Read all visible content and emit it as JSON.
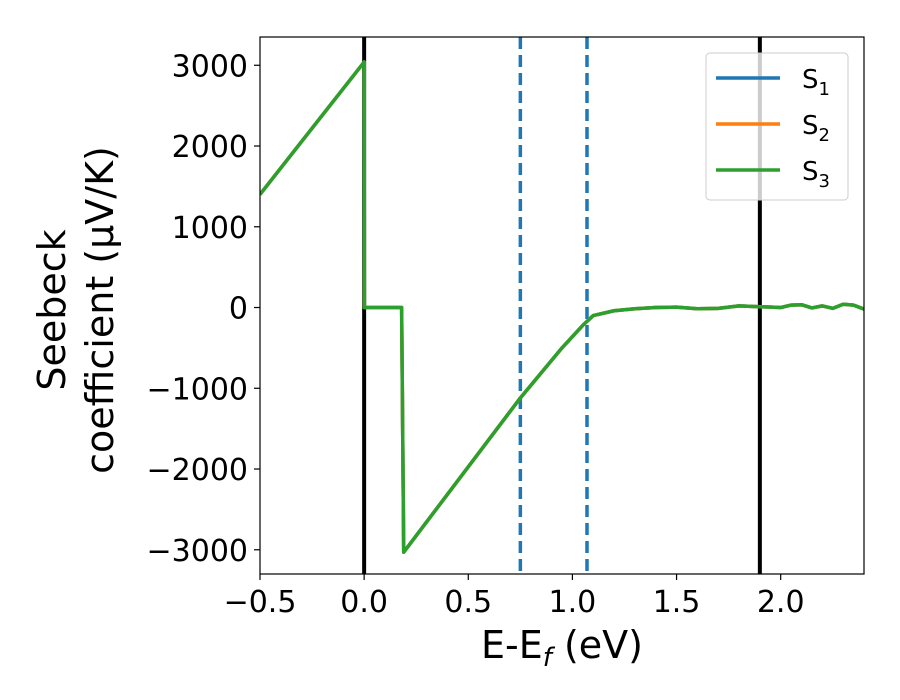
{
  "chart_data": {
    "type": "line",
    "xlabel": "E-E",
    "xlabel_sub": "f",
    "xlabel_unit": " (eV)",
    "ylabel_line1": "Seebeck",
    "ylabel_line2": "coefficient  (μV/K)",
    "xlim": [
      -0.5,
      2.4
    ],
    "ylim": [
      -3300,
      3350
    ],
    "xticks": [
      -0.5,
      0.0,
      0.5,
      1.0,
      1.5,
      2.0
    ],
    "xtick_labels": [
      "−0.5",
      "0.0",
      "0.5",
      "1.0",
      "1.5",
      "2.0"
    ],
    "yticks": [
      -3000,
      -2000,
      -1000,
      0,
      1000,
      2000,
      3000
    ],
    "ytick_labels": [
      "−3000",
      "−2000",
      "−1000",
      "0",
      "1000",
      "2000",
      "3000"
    ],
    "grid": false,
    "legend_position": "top-right",
    "series": [
      {
        "name": "S",
        "sub": "1",
        "color": "#1f77b4",
        "x": [
          -0.5,
          0.0,
          0.001,
          0.18,
          0.19,
          0.75,
          0.95,
          1.05,
          1.1,
          1.2,
          1.3,
          1.4,
          1.5,
          1.6,
          1.7,
          1.8,
          1.9,
          2.0,
          2.05,
          2.1,
          2.15,
          2.2,
          2.25,
          2.3,
          2.35,
          2.4
        ],
        "y": [
          1400,
          3040,
          0,
          0,
          -3030,
          -1120,
          -500,
          -220,
          -100,
          -40,
          -15,
          0,
          5,
          -15,
          -10,
          20,
          10,
          0,
          30,
          35,
          -5,
          20,
          -10,
          40,
          30,
          -20
        ]
      },
      {
        "name": "S",
        "sub": "2",
        "color": "#ff7f0e",
        "x": [
          -0.5,
          0.0,
          0.001,
          0.18,
          0.19,
          0.75,
          0.95,
          1.05,
          1.1,
          1.2,
          1.3,
          1.4,
          1.5,
          1.6,
          1.7,
          1.8,
          1.9,
          2.0,
          2.05,
          2.1,
          2.15,
          2.2,
          2.25,
          2.3,
          2.35,
          2.4
        ],
        "y": [
          1400,
          3040,
          0,
          0,
          -3030,
          -1120,
          -500,
          -220,
          -100,
          -40,
          -15,
          0,
          5,
          -15,
          -10,
          20,
          10,
          0,
          30,
          35,
          -5,
          20,
          -10,
          40,
          30,
          -20
        ]
      },
      {
        "name": "S",
        "sub": "3",
        "color": "#2ca02c",
        "x": [
          -0.5,
          0.0,
          0.001,
          0.18,
          0.19,
          0.75,
          0.95,
          1.05,
          1.1,
          1.2,
          1.3,
          1.4,
          1.5,
          1.6,
          1.7,
          1.8,
          1.9,
          2.0,
          2.05,
          2.1,
          2.15,
          2.2,
          2.25,
          2.3,
          2.35,
          2.4
        ],
        "y": [
          1400,
          3040,
          0,
          0,
          -3030,
          -1120,
          -500,
          -220,
          -100,
          -40,
          -15,
          0,
          5,
          -15,
          -10,
          20,
          10,
          0,
          30,
          35,
          -5,
          20,
          -10,
          40,
          30,
          -20
        ]
      }
    ],
    "vertical_lines": [
      {
        "x": 0.0,
        "style": "solid",
        "color": "#000000"
      },
      {
        "x": 0.75,
        "style": "dashed",
        "color": "#1f77b4"
      },
      {
        "x": 1.07,
        "style": "dashed",
        "color": "#1f77b4"
      },
      {
        "x": 1.9,
        "style": "solid",
        "color": "#000000"
      }
    ]
  }
}
